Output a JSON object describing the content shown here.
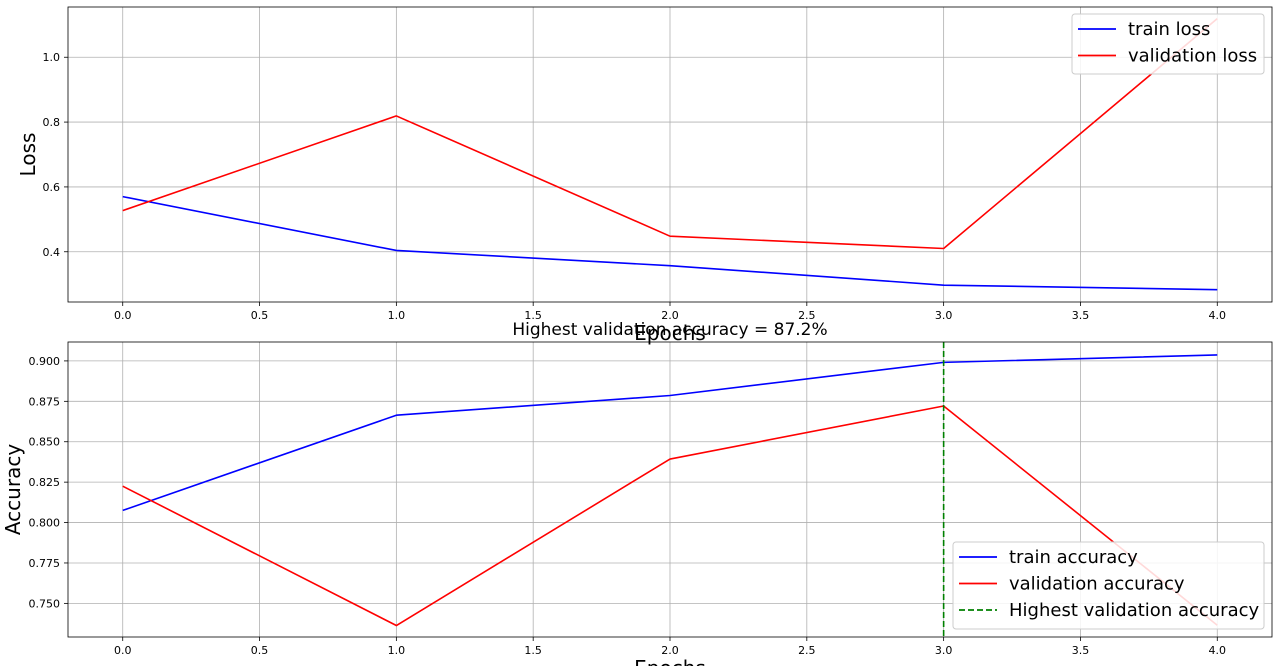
{
  "chart_data": [
    {
      "type": "line",
      "title": "",
      "xlabel": "Epochs",
      "ylabel": "Loss",
      "xlim": [
        -0.2,
        4.2
      ],
      "ylim": [
        0.245,
        1.155
      ],
      "xticks": [
        0.0,
        0.5,
        1.0,
        1.5,
        2.0,
        2.5,
        3.0,
        3.5,
        4.0
      ],
      "xtick_labels": [
        "0.0",
        "0.5",
        "1.0",
        "1.5",
        "2.0",
        "2.5",
        "3.0",
        "3.5",
        "4.0"
      ],
      "yticks": [
        0.4,
        0.6,
        0.8,
        1.0
      ],
      "ytick_labels": [
        "0.4",
        "0.6",
        "0.8",
        "1.0"
      ],
      "grid": true,
      "legend_position": "top-right",
      "x": [
        0,
        1,
        2,
        3,
        4
      ],
      "series": [
        {
          "name": "train loss",
          "color": "#0000ff",
          "style": "solid",
          "values": [
            0.57,
            0.404,
            0.357,
            0.297,
            0.283
          ]
        },
        {
          "name": "validation loss",
          "color": "#ff0000",
          "style": "solid",
          "values": [
            0.527,
            0.819,
            0.448,
            0.41,
            1.119
          ]
        }
      ]
    },
    {
      "type": "line",
      "title": "Highest validation accuracy = 87.2%",
      "xlabel": "Epochs",
      "ylabel": "Accuracy",
      "xlim": [
        -0.2,
        4.2
      ],
      "ylim": [
        0.7292,
        0.9117
      ],
      "xticks": [
        0.0,
        0.5,
        1.0,
        1.5,
        2.0,
        2.5,
        3.0,
        3.5,
        4.0
      ],
      "xtick_labels": [
        "0.0",
        "0.5",
        "1.0",
        "1.5",
        "2.0",
        "2.5",
        "3.0",
        "3.5",
        "4.0"
      ],
      "yticks": [
        0.75,
        0.775,
        0.8,
        0.825,
        0.85,
        0.875,
        0.9
      ],
      "ytick_labels": [
        "0.750",
        "0.775",
        "0.800",
        "0.825",
        "0.850",
        "0.875",
        "0.900"
      ],
      "grid": true,
      "legend_position": "bottom-right",
      "x": [
        0,
        1,
        2,
        3,
        4
      ],
      "series": [
        {
          "name": "train accuracy",
          "color": "#0000ff",
          "style": "solid",
          "values": [
            0.8075,
            0.8664,
            0.8786,
            0.8991,
            0.9037
          ]
        },
        {
          "name": "validation accuracy",
          "color": "#ff0000",
          "style": "solid",
          "values": [
            0.8225,
            0.7363,
            0.8393,
            0.8721,
            0.7365
          ]
        }
      ],
      "vline": {
        "name": "Highest validation accuracy",
        "x": 3,
        "color": "#008000",
        "style": "dashed"
      }
    }
  ]
}
